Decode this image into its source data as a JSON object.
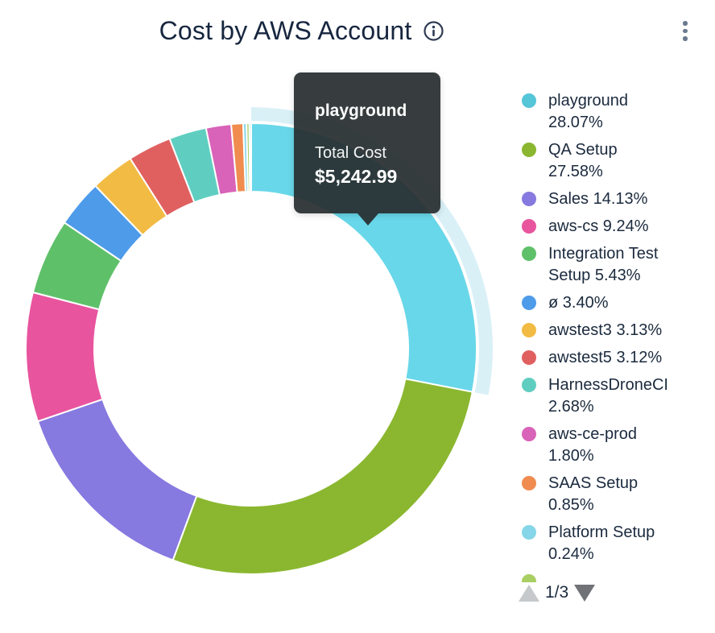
{
  "header": {
    "title": "Cost by AWS Account"
  },
  "tooltip": {
    "name": "playground",
    "row_label": "Total Cost",
    "value": "$5,242.99"
  },
  "pagination": {
    "label": "1/3",
    "current_page": 1,
    "total_pages": 3
  },
  "legend": {
    "partial_next_item_color": "#A9CE62"
  },
  "chart_data": {
    "type": "pie",
    "title": "Cost by AWS Account",
    "donut": true,
    "unit": "%",
    "highlighted_slice": "playground",
    "highlight_halo_color": "#D9F0F7",
    "total_cost_of_highlighted": "$5,242.99",
    "series": [
      {
        "label": "playground",
        "value": 28.07,
        "pct_label": "28.07%",
        "color": "#55C5D8",
        "slice_color": "#68D7E9",
        "highlighted": true,
        "legend_lines": [
          "playground",
          "28.07%"
        ]
      },
      {
        "label": "QA Setup",
        "value": 27.58,
        "pct_label": "27.58%",
        "color": "#8AB72F",
        "legend_lines": [
          "QA Setup",
          "27.58%"
        ]
      },
      {
        "label": "Sales",
        "value": 14.13,
        "pct_label": "14.13%",
        "color": "#8679E0",
        "legend_lines": [
          "Sales 14.13%"
        ]
      },
      {
        "label": "aws-cs",
        "value": 9.24,
        "pct_label": "9.24%",
        "color": "#E8549E",
        "legend_lines": [
          "aws-cs 9.24%"
        ]
      },
      {
        "label": "Integration Test Setup",
        "value": 5.43,
        "pct_label": "5.43%",
        "color": "#5FC06A",
        "legend_lines": [
          "Integration Test",
          "Setup 5.43%"
        ]
      },
      {
        "label": "ø",
        "value": 3.4,
        "pct_label": "3.40%",
        "color": "#4E9BEA",
        "legend_lines": [
          "ø 3.40%"
        ]
      },
      {
        "label": "awstest3",
        "value": 3.13,
        "pct_label": "3.13%",
        "color": "#F2BB43",
        "legend_lines": [
          "awstest3 3.13%"
        ]
      },
      {
        "label": "awstest5",
        "value": 3.12,
        "pct_label": "3.12%",
        "color": "#E06060",
        "legend_lines": [
          "awstest5 3.12%"
        ]
      },
      {
        "label": "HarnessDroneCI",
        "value": 2.68,
        "pct_label": "2.68%",
        "color": "#5FCEC0",
        "legend_lines": [
          "HarnessDroneCI",
          "2.68%"
        ]
      },
      {
        "label": "aws-ce-prod",
        "value": 1.8,
        "pct_label": "1.80%",
        "color": "#D863B8",
        "legend_lines": [
          "aws-ce-prod",
          "1.80%"
        ]
      },
      {
        "label": "SAAS Setup",
        "value": 0.85,
        "pct_label": "0.85%",
        "color": "#F08C50",
        "legend_lines": [
          "SAAS Setup",
          "0.85%"
        ]
      },
      {
        "label": "Platform Setup",
        "value": 0.24,
        "pct_label": "0.24%",
        "color": "#85D6E8",
        "legend_lines": [
          "Platform Setup",
          "0.24%"
        ]
      }
    ],
    "unlabeled_slivers": [
      {
        "value": 0.2,
        "color": "#A9CE62"
      },
      {
        "value": 0.13,
        "color": "#62CFC2"
      }
    ]
  }
}
